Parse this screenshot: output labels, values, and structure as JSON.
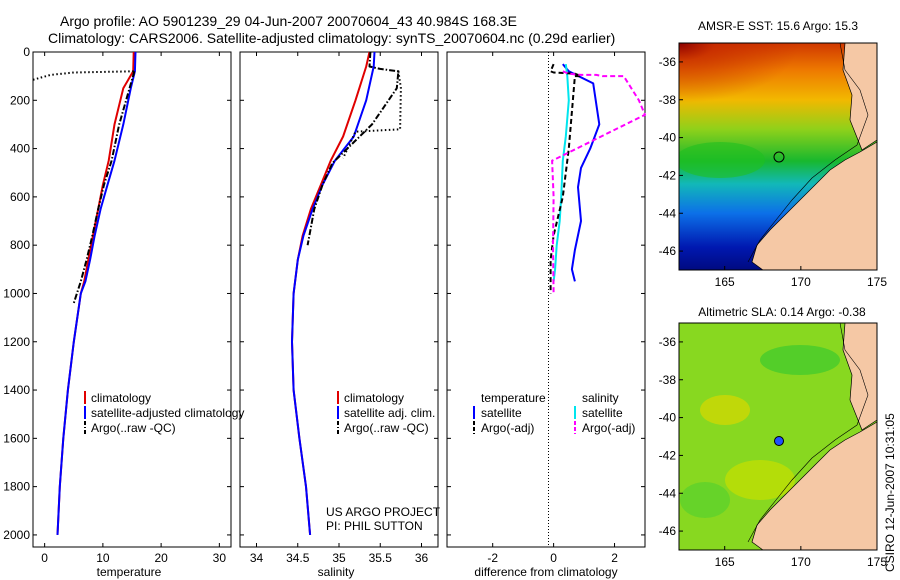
{
  "header": {
    "line1": "Argo profile: AO 5901239_29 04-Jun-2007 20070604_43 40.984S 168.3E",
    "line2": "Climatology: CARS2006. Satellite-adjusted climatology: synTS_20070604.nc (0.29d earlier)"
  },
  "colors": {
    "climatology": "#e00000",
    "satellite": "#0000ff",
    "argo": "#000000",
    "cyan": "#00e5ee",
    "magenta": "#ff00ff",
    "land": "#f5c8a5"
  },
  "chart_data": [
    {
      "type": "line",
      "id": "temperature",
      "xlabel": "temperature",
      "xlim": [
        -2,
        32
      ],
      "ylim": [
        0,
        2050
      ],
      "xticks": [
        0,
        10,
        20,
        30
      ],
      "yticks": [
        0,
        200,
        400,
        600,
        800,
        1000,
        1200,
        1400,
        1600,
        1800,
        2000
      ],
      "legend": [
        "climatology",
        "satellite-adjusted climatology",
        "Argo(..raw -QC)"
      ],
      "series": [
        {
          "name": "climatology",
          "color": "#e00000",
          "style": "solid",
          "x": [
            15.3,
            15.2,
            13.5,
            12.0,
            11.0,
            10.0,
            9.2,
            8.3,
            7.5,
            6.8,
            6.2,
            5.0,
            4.0,
            3.2,
            2.6,
            2.2
          ],
          "y": [
            0,
            80,
            150,
            300,
            450,
            550,
            650,
            760,
            860,
            950,
            1000,
            1200,
            1400,
            1600,
            1800,
            2000
          ]
        },
        {
          "name": "satellite-adjusted climatology",
          "color": "#0000ff",
          "style": "solid",
          "x": [
            15.6,
            15.5,
            14.8,
            13.5,
            12.0,
            10.8,
            9.6,
            8.6,
            7.8,
            7.0,
            6.2,
            5.0,
            4.0,
            3.2,
            2.6,
            2.2
          ],
          "y": [
            0,
            80,
            150,
            300,
            450,
            550,
            650,
            760,
            860,
            950,
            1000,
            1200,
            1400,
            1600,
            1800,
            2000
          ]
        },
        {
          "name": "Argo(..raw -QC)",
          "color": "#000000",
          "style": "dashdot",
          "x": [
            15.4,
            15.3,
            12.8,
            11.5,
            10.2,
            9.2,
            8.2,
            7.2,
            6.2,
            5.0
          ],
          "y": [
            80,
            90,
            300,
            450,
            550,
            650,
            760,
            860,
            950,
            1040
          ]
        },
        {
          "name": "Argo raw",
          "color": "#000000",
          "style": "dotted",
          "x": [
            -2,
            1.0,
            5.0,
            15.3
          ],
          "y": [
            115,
            95,
            85,
            80
          ]
        }
      ]
    },
    {
      "type": "line",
      "id": "salinity",
      "xlabel": "salinity",
      "xlim": [
        33.8,
        36.2
      ],
      "ylim": [
        0,
        2050
      ],
      "xticks": [
        34,
        34.5,
        35,
        35.5,
        36
      ],
      "yticks": [
        0,
        200,
        400,
        600,
        800,
        1000,
        1200,
        1400,
        1600,
        1800,
        2000
      ],
      "legend": [
        "climatology",
        "satellite adj. clim.",
        "Argo(..raw -QC)"
      ],
      "credit": [
        "US ARGO PROJECT",
        "PI: PHIL SUTTON"
      ],
      "series": [
        {
          "name": "climatology",
          "color": "#e00000",
          "style": "solid",
          "x": [
            35.37,
            35.33,
            35.2,
            35.05,
            34.9,
            34.78,
            34.66,
            34.56,
            34.5,
            34.45,
            34.43,
            34.45,
            34.52,
            34.6,
            34.65
          ],
          "y": [
            0,
            60,
            200,
            350,
            450,
            550,
            650,
            760,
            860,
            1000,
            1200,
            1400,
            1600,
            1800,
            2000
          ]
        },
        {
          "name": "satellite adj. clim.",
          "color": "#0000ff",
          "style": "solid",
          "x": [
            35.43,
            35.42,
            35.33,
            35.18,
            34.95,
            34.8,
            34.68,
            34.57,
            34.5,
            34.45,
            34.43,
            34.45,
            34.52,
            34.6,
            34.65
          ],
          "y": [
            0,
            60,
            200,
            350,
            450,
            550,
            650,
            760,
            860,
            1000,
            1200,
            1400,
            1600,
            1800,
            2000
          ]
        },
        {
          "name": "Argo(..raw -QC)",
          "color": "#000000",
          "style": "dashdot",
          "x": [
            35.38,
            35.37,
            35.5,
            35.72,
            35.7,
            35.4,
            35.1,
            34.92,
            34.8,
            34.7,
            34.62
          ],
          "y": [
            0,
            60,
            70,
            80,
            150,
            300,
            400,
            460,
            550,
            650,
            800
          ]
        },
        {
          "name": "Argo raw",
          "color": "#000000",
          "style": "dotted",
          "x": [
            35.72,
            35.75,
            35.74,
            35.2,
            35.05
          ],
          "y": [
            80,
            150,
            320,
            330,
            440
          ]
        }
      ]
    },
    {
      "type": "line",
      "id": "difference",
      "xlabel": "difference from climatology",
      "xlim": [
        -3.5,
        3.0
      ],
      "ylim": [
        0,
        2050
      ],
      "xticks": [
        -2,
        0,
        2
      ],
      "yticks": [
        0,
        200,
        400,
        600,
        800,
        1000,
        1200,
        1400,
        1600,
        1800,
        2000
      ],
      "legend_temperature": [
        "temperature",
        "satellite",
        "Argo(-adj)"
      ],
      "legend_salinity": [
        "salinity",
        "satellite",
        "Argo(-adj)"
      ],
      "series": [
        {
          "name": "temperature satellite",
          "color": "#0000ff",
          "style": "solid",
          "x": [
            0.3,
            0.5,
            1.3,
            1.5,
            1.2,
            0.9,
            0.8,
            0.9,
            0.7,
            0.6,
            0.7
          ],
          "y": [
            50,
            80,
            130,
            300,
            400,
            480,
            560,
            700,
            820,
            900,
            950
          ]
        },
        {
          "name": "salinity satellite",
          "color": "#00e5ee",
          "style": "solid",
          "x": [
            0.4,
            0.45,
            0.5,
            0.4,
            0.3,
            0.25,
            0.2,
            0.1,
            0.05,
            0.0
          ],
          "y": [
            50,
            100,
            200,
            350,
            450,
            600,
            700,
            800,
            900,
            950
          ]
        },
        {
          "name": "temperature Argo(-adj)",
          "color": "#000000",
          "style": "dashed",
          "x": [
            0.0,
            -0.1,
            0.0,
            0.7,
            0.9,
            0.7,
            0.5,
            0.4,
            0.3,
            0.0,
            -0.1,
            -0.1
          ],
          "y": [
            50,
            80,
            85,
            90,
            100,
            100,
            400,
            500,
            600,
            760,
            860,
            1000
          ]
        },
        {
          "name": "salinity Argo(-adj)",
          "color": "#ff00ff",
          "style": "dashed",
          "x": [
            0.3,
            0.5,
            0.9,
            1.4,
            1.6,
            2.3,
            2.5,
            2.8,
            3.0,
            -0.05,
            0.0,
            -0.02,
            0.0
          ],
          "y": [
            80,
            90,
            95,
            95,
            100,
            100,
            140,
            200,
            260,
            450,
            600,
            800,
            1000
          ]
        }
      ]
    }
  ],
  "maps": [
    {
      "id": "sst",
      "title": "AMSR-E SST: 15.6 Argo: 15.3",
      "marker": "open-circle",
      "xticks": [
        "165",
        "170",
        "175"
      ],
      "yticks": [
        "-36",
        "-38",
        "-40",
        "-42",
        "-44",
        "-46"
      ]
    },
    {
      "id": "sla",
      "title": "Altimetric SLA: 0.14 Argo: -0.38",
      "marker": "filled-blue-circle",
      "xticks": [
        "165",
        "170",
        "175"
      ],
      "yticks": [
        "-36",
        "-38",
        "-40",
        "-42",
        "-44",
        "-46"
      ]
    }
  ],
  "footer_stamp": "CSIRO 12-Jun-2007 10:31:05"
}
